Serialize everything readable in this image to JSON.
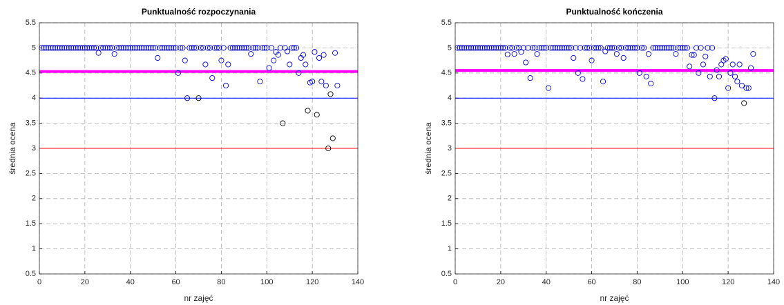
{
  "chart_data": [
    {
      "type": "scatter",
      "title": "Punktualność rozpoczynania",
      "xlabel": "nr zajęć",
      "ylabel": "średnia ocena",
      "xlim": [
        0,
        140
      ],
      "xticks": [
        0,
        20,
        40,
        60,
        80,
        100,
        120,
        140
      ],
      "ylim": [
        0.5,
        5.5
      ],
      "yticks": [
        0.5,
        1,
        1.5,
        2,
        2.5,
        3,
        3.5,
        4,
        4.5,
        5,
        5.5
      ],
      "grid": true,
      "hlines": [
        {
          "y": 4.53,
          "color": "#ff00ff",
          "linewidth": 4
        },
        {
          "y": 4,
          "color": "#0000ff",
          "linewidth": 1
        },
        {
          "y": 3,
          "color": "#ff0000",
          "linewidth": 1
        }
      ],
      "series": [
        {
          "color": "#0000cc",
          "x": [
            1,
            2,
            3,
            4,
            5,
            6,
            7,
            8,
            9,
            10,
            11,
            12,
            13,
            14,
            15,
            16,
            17,
            18,
            19,
            20,
            21,
            22,
            23,
            24,
            25,
            26,
            27,
            28,
            29,
            30,
            31,
            32,
            33,
            34,
            35,
            36,
            37,
            38,
            39,
            40,
            41,
            42,
            43,
            44,
            45,
            46,
            47,
            48,
            49,
            50,
            51,
            52,
            53,
            54,
            55,
            56,
            57,
            58,
            59,
            60,
            61,
            62,
            63,
            64,
            65,
            66,
            67,
            68,
            69,
            71,
            72,
            73,
            74,
            75,
            76,
            77,
            78,
            79,
            80,
            81,
            82,
            83,
            84,
            85,
            86,
            87,
            88,
            89,
            90,
            91,
            92,
            93,
            94,
            95,
            96,
            97,
            98,
            99,
            100,
            101,
            102,
            103,
            104,
            105,
            106,
            108,
            109,
            110,
            111,
            112,
            113,
            114,
            115,
            116,
            117,
            119,
            120,
            121,
            123,
            124,
            125,
            126,
            130,
            131
          ],
          "values": [
            5,
            5,
            5,
            5,
            5,
            5,
            5,
            5,
            5,
            5,
            5,
            5,
            5,
            5,
            5,
            5,
            5,
            5,
            5,
            5,
            5,
            5,
            5,
            5,
            5,
            4.9,
            5,
            5,
            5,
            5,
            5,
            5,
            4.88,
            5,
            5,
            5,
            5,
            5,
            5,
            5,
            5,
            5,
            5,
            5,
            5,
            5,
            5,
            5,
            5,
            5,
            5,
            4.8,
            5,
            5,
            5,
            5,
            5,
            5,
            5,
            5,
            4.5,
            5,
            5,
            4.75,
            4,
            5,
            5,
            5,
            5,
            5,
            5,
            4.67,
            5,
            5,
            4.4,
            5,
            5,
            5,
            4.75,
            5,
            4.25,
            4.67,
            5,
            5,
            5,
            5,
            5,
            5,
            5,
            5,
            5,
            4.88,
            5,
            5,
            5,
            4.33,
            5,
            5,
            5,
            4.6,
            5,
            4.75,
            4.92,
            4.86,
            5,
            5,
            4.93,
            4.67,
            5,
            5,
            5,
            4.5,
            4.8,
            4.86,
            4.67,
            4.31,
            4.33,
            4.92,
            4.8,
            4.33,
            4.86,
            4.25,
            4.9,
            4.25
          ]
        },
        {
          "color": "#000000",
          "x": [
            70,
            107,
            118,
            122,
            127,
            128,
            129
          ],
          "values": [
            4,
            3.5,
            3.75,
            3.67,
            3,
            4.08,
            3.2
          ]
        }
      ]
    },
    {
      "type": "scatter",
      "title": "Punktualność kończenia",
      "xlabel": "nr zajęć",
      "ylabel": "średnia ocena",
      "xlim": [
        0,
        140
      ],
      "xticks": [
        0,
        20,
        40,
        60,
        80,
        100,
        120,
        140
      ],
      "ylim": [
        0.5,
        5.5
      ],
      "yticks": [
        0.5,
        1,
        1.5,
        2,
        2.5,
        3,
        3.5,
        4,
        4.5,
        5,
        5.5
      ],
      "grid": true,
      "hlines": [
        {
          "y": 4.55,
          "color": "#ff00ff",
          "linewidth": 4
        },
        {
          "y": 4,
          "color": "#0000ff",
          "linewidth": 1
        },
        {
          "y": 3,
          "color": "#ff0000",
          "linewidth": 1
        }
      ],
      "series": [
        {
          "color": "#0000cc",
          "x": [
            1,
            2,
            3,
            4,
            5,
            6,
            7,
            8,
            9,
            10,
            11,
            12,
            13,
            14,
            15,
            16,
            17,
            18,
            19,
            20,
            21,
            22,
            23,
            24,
            25,
            26,
            27,
            28,
            29,
            30,
            31,
            32,
            33,
            34,
            35,
            36,
            37,
            38,
            39,
            40,
            41,
            42,
            43,
            44,
            45,
            46,
            47,
            48,
            49,
            50,
            51,
            52,
            53,
            54,
            55,
            56,
            57,
            58,
            59,
            60,
            61,
            62,
            63,
            64,
            65,
            66,
            67,
            68,
            69,
            70,
            71,
            72,
            73,
            74,
            75,
            76,
            77,
            78,
            79,
            80,
            81,
            82,
            83,
            84,
            85,
            86,
            87,
            88,
            89,
            90,
            91,
            92,
            93,
            94,
            95,
            96,
            97,
            98,
            99,
            100,
            101,
            102,
            103,
            104,
            105,
            106,
            107,
            108,
            109,
            110,
            111,
            112,
            113,
            114,
            115,
            116,
            117,
            118,
            119,
            120,
            121,
            122,
            123,
            124,
            125,
            126,
            128,
            129,
            130,
            131
          ],
          "values": [
            5,
            5,
            5,
            5,
            5,
            5,
            5,
            5,
            5,
            5,
            5,
            5,
            5,
            5,
            5,
            5,
            5,
            5,
            5,
            5,
            5,
            5,
            4.87,
            5,
            5,
            4.88,
            5,
            5,
            4.92,
            5,
            4.71,
            5,
            4.4,
            5,
            5,
            4.88,
            5,
            5,
            5,
            5,
            4.2,
            5,
            5,
            5,
            5,
            5,
            5,
            5,
            5,
            5,
            5,
            4.8,
            5,
            4.5,
            5,
            4.38,
            5,
            5,
            5,
            4.75,
            5,
            5,
            5,
            5,
            4.33,
            4.93,
            5,
            5,
            5,
            5,
            4.88,
            5,
            5,
            4.8,
            5,
            5,
            5,
            5,
            5,
            5,
            4.5,
            5,
            5,
            4.43,
            4.88,
            4.29,
            5,
            5,
            5,
            5,
            5,
            5,
            5,
            5,
            5,
            5,
            4.88,
            5,
            5,
            5,
            5,
            5,
            4.63,
            4.86,
            4.86,
            5,
            4.5,
            5,
            4.67,
            4.83,
            5,
            4.43,
            5,
            4,
            4.56,
            4.43,
            4.67,
            4.75,
            4.78,
            4.2,
            4.5,
            4.67,
            4.43,
            4.33,
            4.67,
            4.25,
            4.2,
            4.2,
            4.6,
            4.88
          ]
        },
        {
          "color": "#000000",
          "x": [
            127
          ],
          "values": [
            3.9
          ]
        }
      ]
    }
  ]
}
